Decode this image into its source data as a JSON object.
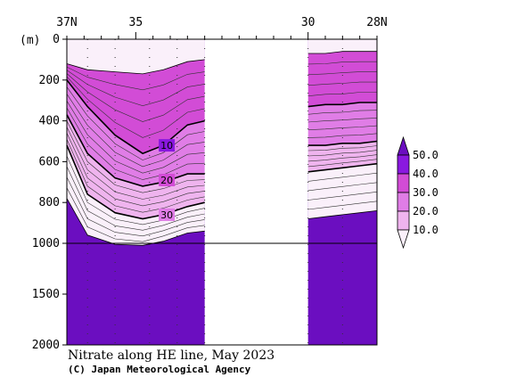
{
  "chart_data": {
    "type": "contour-section",
    "title": "Nitrate along HE line, May 2023",
    "credit": "(C) Japan Meteorological Agency",
    "ylabel": "(m)",
    "x_ticks": [
      {
        "label": "37N",
        "lat": 37
      },
      {
        "label": "35",
        "lat": 35
      },
      {
        "label": "30",
        "lat": 30
      },
      {
        "label": "28N",
        "lat": 28
      }
    ],
    "xlim": [
      37,
      28
    ],
    "y_ticks": [
      0,
      200,
      400,
      600,
      800,
      1000,
      1500,
      2000
    ],
    "ylim": [
      0,
      2000
    ],
    "station_lats": [
      37,
      36.4,
      35.6,
      34.6,
      33.8,
      33.0,
      30.0,
      29.0,
      28.0
    ],
    "no_data_range": [
      33.0,
      30.0
    ],
    "contour_labels": [
      {
        "text": "10",
        "lat": 34.1,
        "depth": 520
      },
      {
        "text": "20",
        "lat": 34.1,
        "depth": 690
      },
      {
        "text": "30",
        "lat": 34.1,
        "depth": 860
      }
    ],
    "colorbar": {
      "labels": [
        "50.0",
        "40.0",
        "30.0",
        "20.0",
        "10.0"
      ],
      "levels": [
        10,
        20,
        30,
        40,
        50
      ],
      "colors": [
        "#faf0fa",
        "#efb4ee",
        "#e07de6",
        "#d24cd6",
        "#8a18e0",
        "#6b0ec0"
      ]
    }
  }
}
